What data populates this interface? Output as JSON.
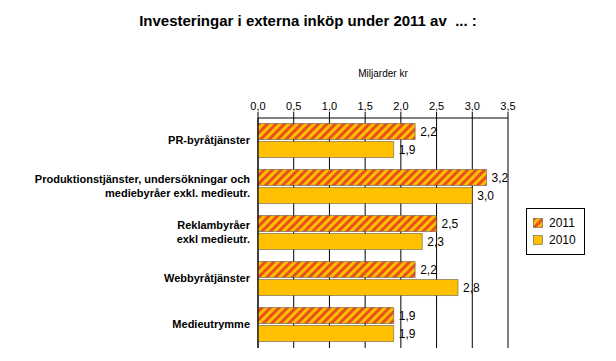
{
  "chart_data": {
    "type": "bar",
    "orientation": "horizontal",
    "title": "Investeringar i externa inköp under 2011 av  ... :",
    "xlabel": "Miljarder kr",
    "categories": [
      "PR-byråtjänster",
      "Produktionstjänster, undersökningar och\nmediebyråer exkl. medieutr.",
      "Reklambyråer\nexkl medieutr.",
      "Webbyråtjänster",
      "Medieutrymme"
    ],
    "series": [
      {
        "name": "2011",
        "color": "#e8501e",
        "values": [
          2.2,
          3.2,
          2.5,
          2.2,
          1.9
        ],
        "value_labels": [
          "2,2",
          "3,2",
          "2,5",
          "2,2",
          "1,9"
        ]
      },
      {
        "name": "2010",
        "color": "#ffc000",
        "values": [
          1.9,
          3.0,
          2.3,
          2.8,
          1.9
        ],
        "value_labels": [
          "1,9",
          "3,0",
          "2,3",
          "2,8",
          "1,9"
        ]
      }
    ],
    "xlim": [
      0,
      3.5
    ],
    "xticks": [
      {
        "value": 0,
        "label": "0,0"
      },
      {
        "value": 0.5,
        "label": "0,5"
      },
      {
        "value": 1,
        "label": "1,0"
      },
      {
        "value": 1.5,
        "label": "1,5"
      },
      {
        "value": 2,
        "label": "2,0"
      },
      {
        "value": 2.5,
        "label": "2,5"
      },
      {
        "value": 3,
        "label": "3,0"
      },
      {
        "value": 3.5,
        "label": "3,5"
      }
    ],
    "grid": true,
    "data_labels": true,
    "legend": "right"
  }
}
